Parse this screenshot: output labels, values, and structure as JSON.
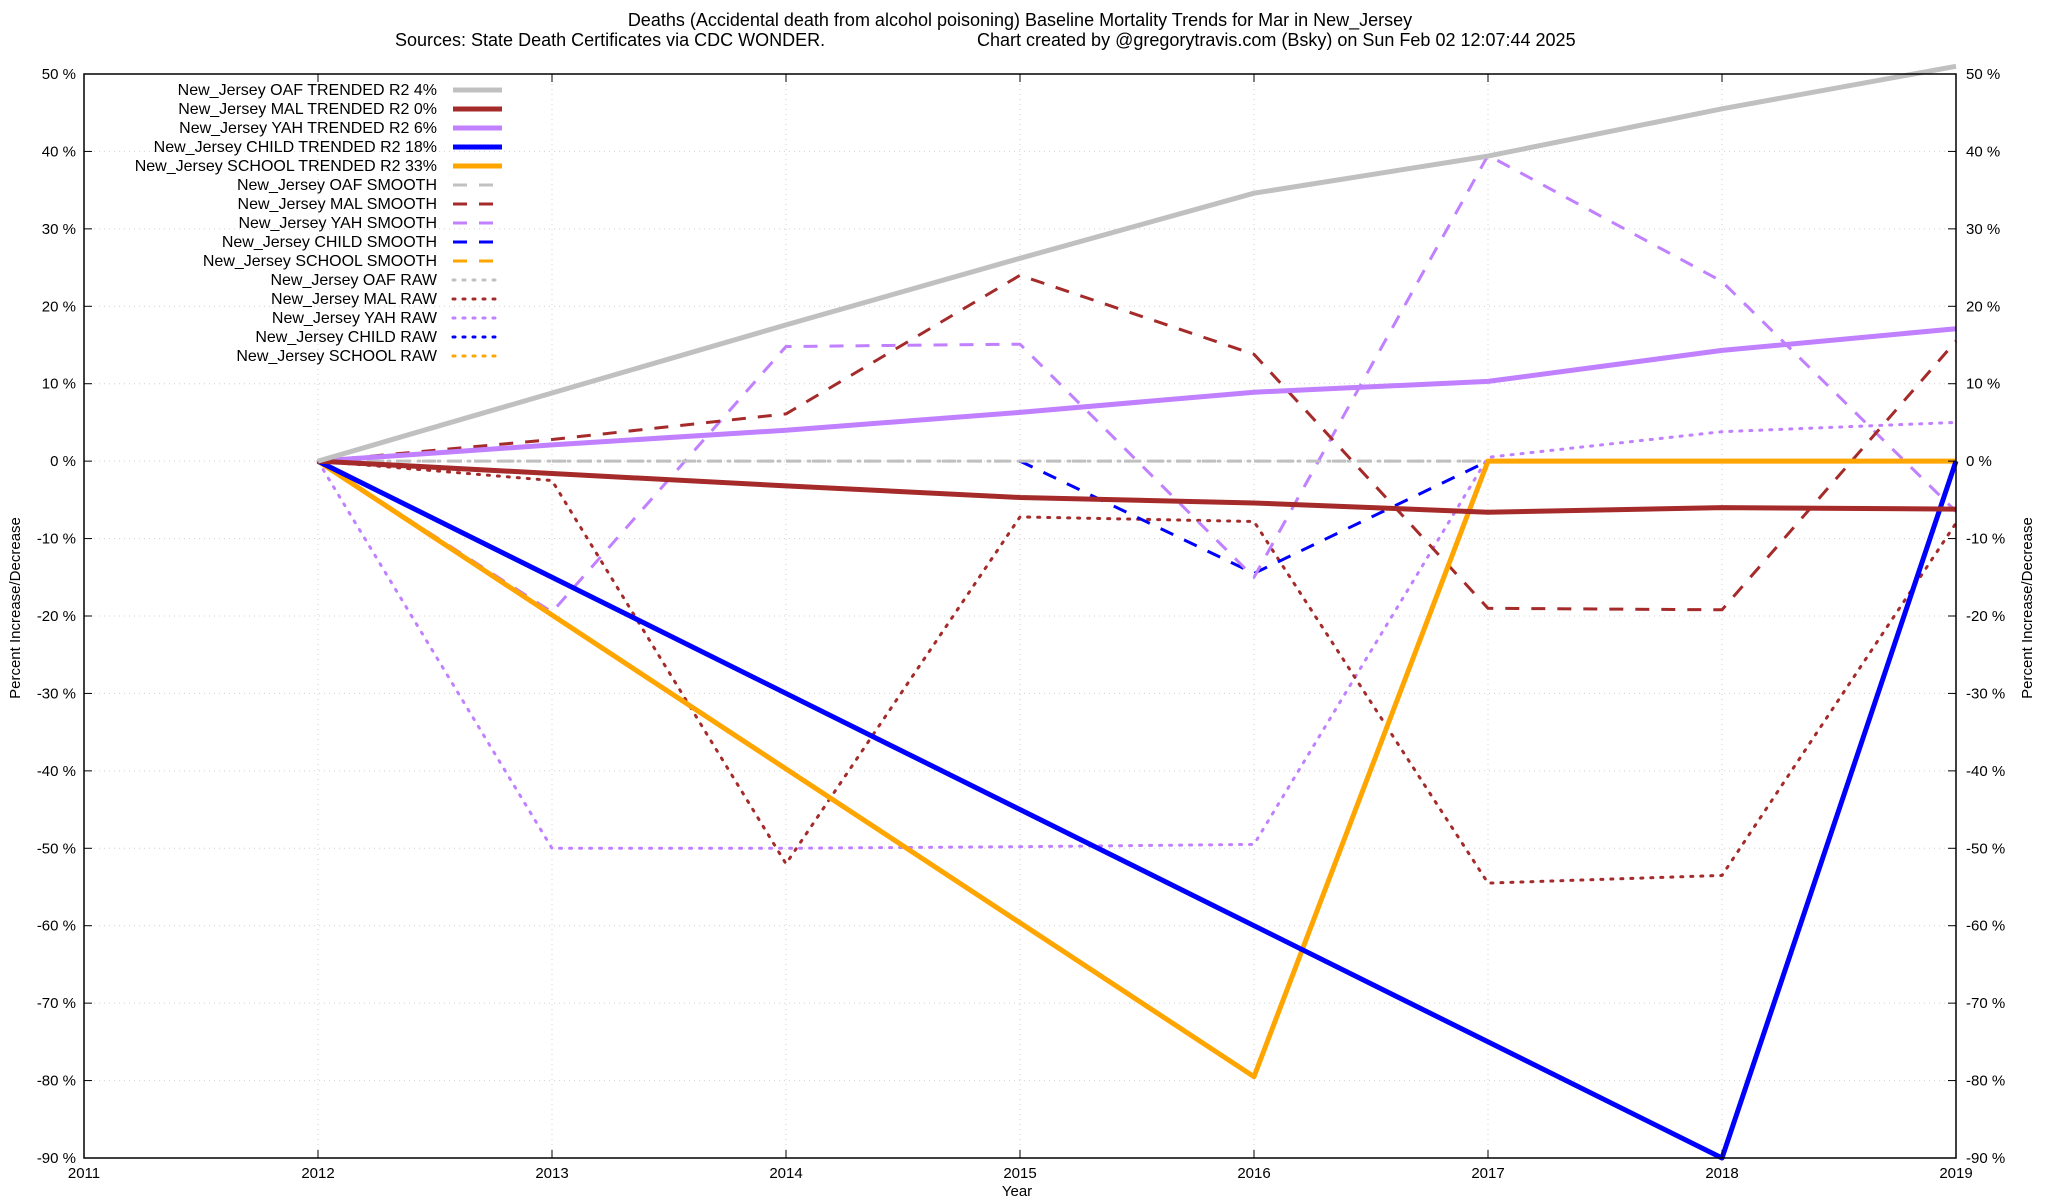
{
  "chart_data": {
    "type": "line",
    "title_line1": "Deaths (Accidental death from alcohol poisoning)  Baseline Mortality Trends for Mar in New_Jersey",
    "title_line2_left": "Sources: State Death Certificates via CDC WONDER.",
    "title_line2_right": "Chart created by @gregorytravis.com (Bsky) on Sun Feb 02 12:07:44 2025",
    "xlabel": "Year",
    "ylabel_left": "Percent Increase/Decrease",
    "ylabel_right": "Percent Increase/Decrease",
    "xlim": [
      2011,
      2019
    ],
    "ylim": [
      -90,
      50
    ],
    "x_ticks": [
      "2011",
      "2012",
      "2013",
      "2014",
      "2015",
      "2016",
      "2017",
      "2018",
      "2019"
    ],
    "y_ticks": [
      "50 %",
      "40 %",
      "30 %",
      "20 %",
      "10 %",
      "0 %",
      "-10 %",
      "-20 %",
      "-30 %",
      "-40 %",
      "-50 %",
      "-60 %",
      "-70 %",
      "-80 %",
      "-90 %"
    ],
    "grid": true,
    "legend_position": "top-left",
    "series": [
      {
        "name": "New_Jersey OAF TRENDED R2   4%",
        "color": "#c0c0c0",
        "style": "solid",
        "width": 5,
        "points": [
          [
            2012,
            0
          ],
          [
            2013,
            8.8
          ],
          [
            2014,
            17.6
          ],
          [
            2015,
            26.2
          ],
          [
            2016,
            34.6
          ],
          [
            2017,
            39.4
          ],
          [
            2018,
            45.5
          ],
          [
            2019,
            51
          ]
        ]
      },
      {
        "name": "New_Jersey MAL TRENDED R2   0%",
        "color": "#a52a2a",
        "style": "solid",
        "width": 5,
        "points": [
          [
            2012,
            0
          ],
          [
            2013,
            -1.6
          ],
          [
            2014,
            -3.2
          ],
          [
            2015,
            -4.7
          ],
          [
            2016,
            -5.4
          ],
          [
            2017,
            -6.6
          ],
          [
            2018,
            -6.0
          ],
          [
            2019,
            -6.2
          ]
        ]
      },
      {
        "name": "New_Jersey YAH TRENDED R2   6%",
        "color": "#c080ff",
        "style": "solid",
        "width": 5,
        "points": [
          [
            2012,
            0
          ],
          [
            2013,
            2.1
          ],
          [
            2014,
            4.0
          ],
          [
            2015,
            6.3
          ],
          [
            2016,
            8.9
          ],
          [
            2017,
            10.3
          ],
          [
            2018,
            14.3
          ],
          [
            2019,
            17.1
          ]
        ]
      },
      {
        "name": "New_Jersey CHILD TRENDED R2  18%",
        "color": "#0000ff",
        "style": "solid",
        "width": 5,
        "points": [
          [
            2012,
            0
          ],
          [
            2018,
            -90
          ],
          [
            2019,
            0
          ]
        ]
      },
      {
        "name": "New_Jersey SCHOOL TRENDED R2  33%",
        "color": "#ffa500",
        "style": "solid",
        "width": 5,
        "points": [
          [
            2012,
            0
          ],
          [
            2016,
            -79.5
          ],
          [
            2017,
            0
          ],
          [
            2019,
            0
          ]
        ]
      },
      {
        "name": "New_Jersey OAF SMOOTH",
        "color": "#c0c0c0",
        "style": "dashed",
        "width": 3,
        "points": [
          [
            2012,
            0
          ],
          [
            2019,
            0
          ]
        ]
      },
      {
        "name": "New_Jersey MAL SMOOTH",
        "color": "#a52a2a",
        "style": "dashed",
        "width": 3,
        "points": [
          [
            2012,
            0
          ],
          [
            2013,
            2.8
          ],
          [
            2014,
            6.1
          ],
          [
            2015,
            24.0
          ],
          [
            2016,
            13.8
          ],
          [
            2017,
            -19.0
          ],
          [
            2018,
            -19.2
          ],
          [
            2019,
            15.5
          ]
        ]
      },
      {
        "name": "New_Jersey YAH SMOOTH",
        "color": "#c080ff",
        "style": "dashed",
        "width": 3,
        "points": [
          [
            2012,
            0
          ],
          [
            2013,
            -19.5
          ],
          [
            2014,
            14.8
          ],
          [
            2015,
            15.1
          ],
          [
            2016,
            -15.0
          ],
          [
            2017,
            39.5
          ],
          [
            2018,
            23.2
          ],
          [
            2019,
            -6.5
          ]
        ]
      },
      {
        "name": "New_Jersey CHILD SMOOTH",
        "color": "#0000ff",
        "style": "dashed",
        "width": 3,
        "points": [
          [
            2015,
            0
          ],
          [
            2016,
            -14.5
          ],
          [
            2017,
            0
          ]
        ]
      },
      {
        "name": "New_Jersey SCHOOL SMOOTH",
        "color": "#ffa500",
        "style": "dashed",
        "width": 3,
        "points": [
          [
            2012,
            0
          ],
          [
            2013,
            -19.5
          ]
        ]
      },
      {
        "name": "New_Jersey OAF RAW",
        "color": "#c0c0c0",
        "style": "dotted",
        "width": 3,
        "points": [
          [
            2012,
            0
          ],
          [
            2019,
            0
          ]
        ]
      },
      {
        "name": "New_Jersey MAL RAW",
        "color": "#a52a2a",
        "style": "dotted",
        "width": 3,
        "points": [
          [
            2012,
            0
          ],
          [
            2013,
            -2.5
          ],
          [
            2014,
            -52.0
          ],
          [
            2015,
            -7.2
          ],
          [
            2016,
            -7.8
          ],
          [
            2017,
            -54.5
          ],
          [
            2018,
            -53.5
          ],
          [
            2019,
            -8.0
          ]
        ]
      },
      {
        "name": "New_Jersey YAH RAW",
        "color": "#c080ff",
        "style": "dotted",
        "width": 3,
        "points": [
          [
            2012,
            0
          ],
          [
            2013,
            -50.0
          ],
          [
            2014,
            -50.0
          ],
          [
            2015,
            -49.8
          ],
          [
            2016,
            -49.5
          ],
          [
            2017,
            0.5
          ],
          [
            2018,
            3.8
          ],
          [
            2019,
            5.0
          ]
        ]
      },
      {
        "name": "New_Jersey CHILD RAW",
        "color": "#0000ff",
        "style": "dotted",
        "width": 3,
        "points": []
      },
      {
        "name": "New_Jersey SCHOOL RAW",
        "color": "#ffa500",
        "style": "dotted",
        "width": 3,
        "points": []
      }
    ]
  }
}
